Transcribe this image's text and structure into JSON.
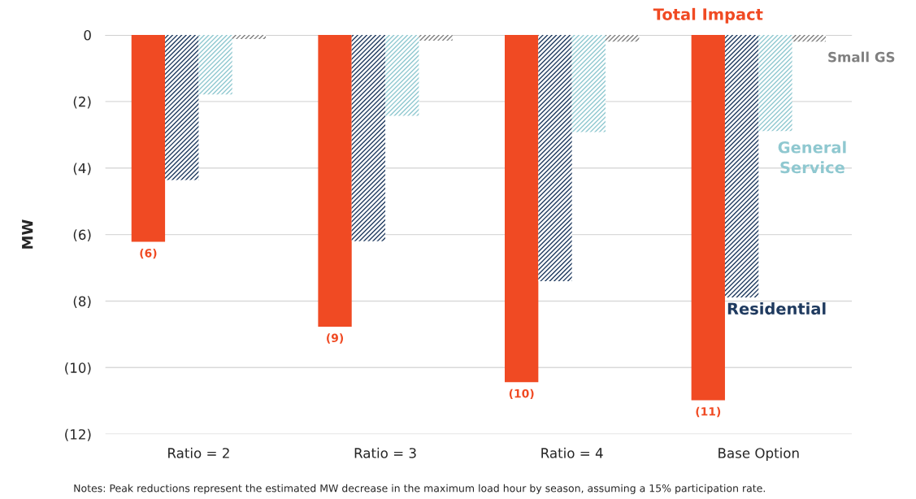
{
  "chart_data": {
    "type": "bar",
    "ylabel": "MW",
    "categories": [
      "Ratio = 2",
      "Ratio = 3",
      "Ratio = 4",
      "Base Option"
    ],
    "series": [
      {
        "name": "Total Impact",
        "color": "#f04a23",
        "values": [
          -6.22,
          -8.77,
          -10.44,
          -10.98
        ],
        "value_labels": [
          "(6)",
          "(9)",
          "(10)",
          "(11)"
        ]
      },
      {
        "name": "Residential",
        "color": "#1f3a5f",
        "values": [
          -4.36,
          -6.2,
          -7.4,
          -7.89
        ]
      },
      {
        "name": "General Service",
        "color": "#8fc8d0",
        "values": [
          -1.79,
          -2.43,
          -2.92,
          -2.89
        ]
      },
      {
        "name": "Small GS",
        "color": "#808080",
        "values": [
          -0.12,
          -0.17,
          -0.2,
          -0.2
        ]
      }
    ],
    "ylim": [
      -12,
      0
    ],
    "yticks": [
      {
        "value": -12,
        "label": "(12)"
      },
      {
        "value": -10,
        "label": "(10)"
      },
      {
        "value": -8,
        "label": "(8)"
      },
      {
        "value": -6,
        "label": "(6)"
      },
      {
        "value": -4,
        "label": "(4)"
      },
      {
        "value": -2,
        "label": "(2)"
      },
      0
    ],
    "grid": "y",
    "legend": false,
    "annotations": [
      "Notes: Peak reductions represent the estimated MW decrease in the maximum load hour by season, assuming a 15% participation rate."
    ]
  }
}
